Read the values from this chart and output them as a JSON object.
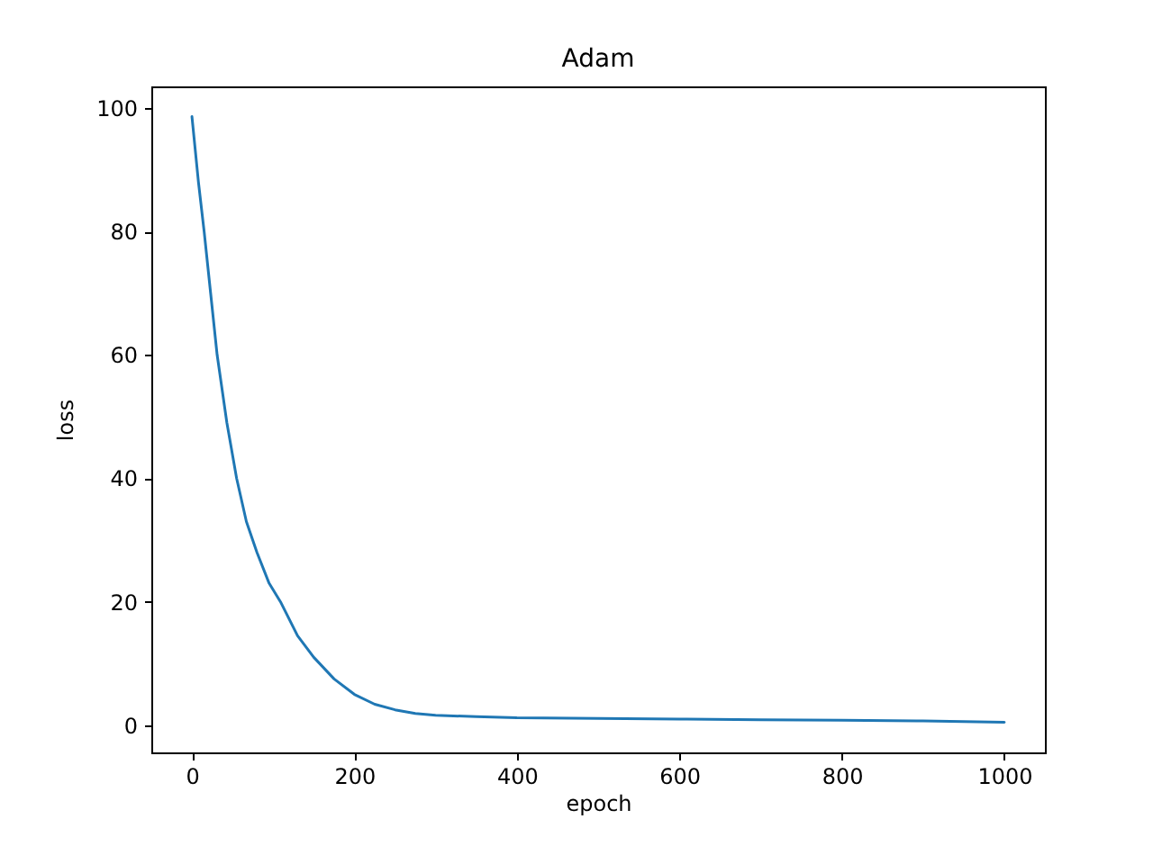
{
  "chart_data": {
    "type": "line",
    "title": "Adam",
    "xlabel": "epoch",
    "ylabel": "loss",
    "x": [
      0,
      8,
      15,
      23,
      31,
      43,
      55,
      67,
      80,
      95,
      109,
      130,
      150,
      175,
      200,
      225,
      250,
      275,
      300,
      350,
      400,
      500,
      600,
      700,
      800,
      900,
      1000
    ],
    "series": [
      {
        "color": "#1f77b4",
        "values": [
          98.6,
          88,
          80,
          70,
          60,
          49,
          40,
          33,
          28,
          23,
          20,
          14.5,
          11,
          7.5,
          5,
          3.4,
          2.5,
          1.9,
          1.6,
          1.4,
          1.2,
          1.1,
          1.0,
          0.9,
          0.8,
          0.7,
          0.5
        ]
      }
    ],
    "xlim": [
      -50,
      1050
    ],
    "ylim": [
      -4.4,
      103.5
    ],
    "xticks": [
      0,
      200,
      400,
      600,
      800,
      1000
    ],
    "yticks": [
      0,
      20,
      40,
      60,
      80,
      100
    ],
    "grid": false,
    "line_style": "solid",
    "marker": "none"
  }
}
